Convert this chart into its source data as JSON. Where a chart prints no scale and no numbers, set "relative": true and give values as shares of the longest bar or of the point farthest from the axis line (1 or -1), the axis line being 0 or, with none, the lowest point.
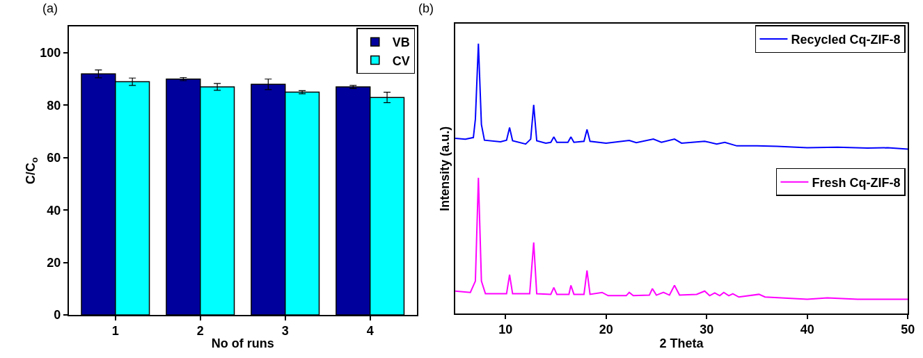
{
  "chart_data": [
    {
      "type": "bar",
      "categories": [
        "1",
        "2",
        "3",
        "4"
      ],
      "xlabel": "No of runs",
      "ylabel": "C/C$_{o}$",
      "annotations": [
        "(a)"
      ],
      "ylim": [
        0,
        110
      ],
      "yticks": [
        0,
        20,
        40,
        60,
        80,
        100
      ],
      "legend": "top right",
      "series": [
        {
          "name": "VB",
          "color": "#00009c",
          "values": [
            92,
            90,
            88,
            87
          ],
          "errors": [
            1.5,
            0.6,
            2,
            0.6
          ]
        },
        {
          "name": "CV",
          "color": "#00ffff",
          "values": [
            89,
            87,
            85,
            83
          ],
          "errors": [
            1.4,
            1.3,
            0.6,
            2
          ]
        }
      ]
    },
    {
      "type": "line",
      "relative": true,
      "xlabel": "2 Theta",
      "ylabel": "Intensity (a.u.)",
      "annotations": [
        "(b)"
      ],
      "xlim": [
        5,
        50
      ],
      "xticks": [
        10,
        20,
        30,
        40,
        50
      ],
      "legend": "top right",
      "marker": "none",
      "line_style": "solid",
      "series": [
        {
          "name": "Recycled Cq-ZIF-8",
          "color": "#0000ff",
          "x": [
            5,
            6,
            6.8,
            7.0,
            7.3,
            7.6,
            7.9,
            9.5,
            10.1,
            10.4,
            10.7,
            12.0,
            12.5,
            12.8,
            13.1,
            14.0,
            14.5,
            14.8,
            15.1,
            16.2,
            16.5,
            16.8,
            17.8,
            18.1,
            18.4,
            20,
            22.3,
            23,
            24.7,
            25.5,
            26.8,
            27.5,
            29.8,
            31,
            31.8,
            33,
            35,
            37,
            40,
            43,
            46,
            48,
            50
          ],
          "values": [
            0.649,
            0.646,
            0.652,
            0.72,
            1.0,
            0.7,
            0.642,
            0.636,
            0.642,
            0.689,
            0.64,
            0.628,
            0.646,
            0.773,
            0.64,
            0.631,
            0.634,
            0.654,
            0.634,
            0.634,
            0.654,
            0.634,
            0.638,
            0.682,
            0.638,
            0.631,
            0.641,
            0.633,
            0.646,
            0.634,
            0.646,
            0.631,
            0.638,
            0.628,
            0.634,
            0.621,
            0.621,
            0.619,
            0.614,
            0.616,
            0.613,
            0.614,
            0.609
          ]
        },
        {
          "name": "Fresh Cq-ZIF-8",
          "color": "#ff00ff",
          "x": [
            5,
            6.5,
            7.0,
            7.3,
            7.6,
            8.0,
            10.1,
            10.4,
            10.7,
            12.4,
            12.8,
            13.1,
            14.5,
            14.8,
            15.1,
            16.3,
            16.5,
            16.8,
            17.8,
            18.1,
            18.4,
            19.6,
            20.2,
            22,
            22.3,
            22.7,
            24.3,
            24.6,
            25.0,
            25.7,
            26.3,
            26.8,
            27.3,
            29,
            29.8,
            30.3,
            30.8,
            31.3,
            31.7,
            32.2,
            32.6,
            33.2,
            35.2,
            35.8,
            40,
            42,
            45,
            50
          ],
          "values": [
            0.083,
            0.078,
            0.12,
            0.503,
            0.12,
            0.073,
            0.073,
            0.144,
            0.073,
            0.073,
            0.263,
            0.073,
            0.071,
            0.096,
            0.071,
            0.071,
            0.104,
            0.071,
            0.071,
            0.159,
            0.071,
            0.078,
            0.066,
            0.066,
            0.078,
            0.066,
            0.068,
            0.092,
            0.068,
            0.078,
            0.068,
            0.104,
            0.068,
            0.071,
            0.083,
            0.066,
            0.076,
            0.066,
            0.078,
            0.066,
            0.073,
            0.061,
            0.071,
            0.061,
            0.053,
            0.058,
            0.053,
            0.053
          ]
        }
      ]
    }
  ]
}
